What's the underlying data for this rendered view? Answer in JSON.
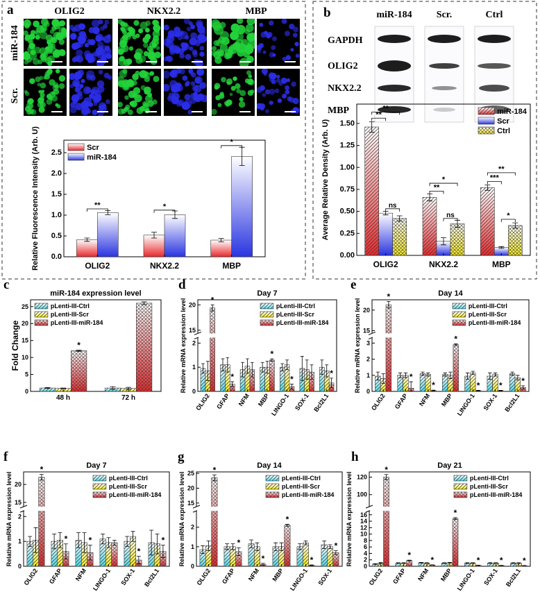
{
  "panel_a": {
    "letter": "a",
    "columns": [
      "OLIG2",
      "NKX2.2",
      "MBP"
    ],
    "rows": [
      "miR-184",
      "Scr."
    ]
  },
  "panel_b": {
    "letter": "b",
    "columns": [
      "miR-184",
      "Scr.",
      "Ctrl"
    ],
    "rows": [
      "GAPDH",
      "OLIG2",
      "NKX2.2",
      "MBP"
    ]
  },
  "colors": {
    "red": "#e8292c",
    "blue": "#2a35e0",
    "cyan": "#4fd8e6",
    "yellow": "#f4e71a",
    "green_stain": "#22d33a",
    "blue_stain": "#2b2de8"
  },
  "chart_data": [
    {
      "id": "a",
      "type": "bar",
      "ylabel": "Relative Fluorescence Intensity (Arb. U)",
      "categories": [
        "OLIG2",
        "NKX2.2",
        "MBP"
      ],
      "ylim": [
        0,
        2.8
      ],
      "yticks": [
        "0.0",
        "0.5",
        "1.0",
        "1.5",
        "2.0",
        "2.5"
      ],
      "legend": "top-left",
      "series": [
        {
          "name": "Scr",
          "color": "red",
          "values": [
            0.41,
            0.52,
            0.4
          ],
          "errors": [
            0.04,
            0.07,
            0.04
          ]
        },
        {
          "name": "miR-184",
          "color": "blue",
          "values": [
            1.06,
            1.01,
            2.41
          ],
          "errors": [
            0.05,
            0.09,
            0.22
          ]
        }
      ],
      "annotations": [
        [
          "**",
          0,
          0,
          1,
          1.15
        ],
        [
          "*",
          1,
          0,
          1,
          1.12
        ],
        [
          "*",
          2,
          0,
          1,
          2.67
        ]
      ]
    },
    {
      "id": "b",
      "type": "bar",
      "ylabel": "Average Relative Density (Arb. U)",
      "categories": [
        "OLIG2",
        "NKX2.2",
        "MBP"
      ],
      "ylim": [
        0,
        1.72
      ],
      "yticks": [
        "0.00",
        "0.25",
        "0.50",
        "0.75",
        "1.00",
        "1.25",
        "1.50"
      ],
      "legend": "top-right",
      "series": [
        {
          "name": "miR-184",
          "color": "red",
          "values": [
            1.46,
            0.66,
            0.77
          ],
          "errors": [
            0.06,
            0.04,
            0.03
          ]
        },
        {
          "name": "Scr",
          "color": "blue",
          "values": [
            0.48,
            0.16,
            0.09
          ],
          "errors": [
            0.02,
            0.04,
            0.01
          ]
        },
        {
          "name": "Ctrl",
          "color": "yellow",
          "values": [
            0.42,
            0.36,
            0.34
          ],
          "errors": [
            0.03,
            0.04,
            0.03
          ]
        }
      ],
      "annotations": [
        [
          "**",
          0,
          0,
          1,
          1.56
        ],
        [
          "**",
          0,
          0,
          2,
          1.63
        ],
        [
          "ns",
          0,
          1,
          2,
          0.53
        ],
        [
          "**",
          1,
          0,
          1,
          0.73
        ],
        [
          "*",
          1,
          0,
          2,
          0.82
        ],
        [
          "ns",
          1,
          1,
          2,
          0.42
        ],
        [
          "***",
          2,
          0,
          1,
          0.84
        ],
        [
          "**",
          2,
          0,
          2,
          0.94
        ],
        [
          "*",
          2,
          1,
          2,
          0.41
        ]
      ]
    },
    {
      "id": "c",
      "type": "bar",
      "title": "miR-184 expression level",
      "ylabel": "Fold Change",
      "categories": [
        "48 h",
        "72 h"
      ],
      "ylim": [
        0,
        27
      ],
      "yticks": [
        "0",
        "5",
        "10",
        "15",
        "20",
        "25"
      ],
      "legend": "top-left",
      "series": [
        {
          "name": "pLenti-III-Ctrl",
          "color": "cyan",
          "values": [
            1.0,
            1.0
          ],
          "errors": [
            0.15,
            0.4
          ]
        },
        {
          "name": "pLenti-III-Scr",
          "color": "yellow",
          "values": [
            0.9,
            0.9
          ],
          "errors": [
            0.1,
            0.3
          ]
        },
        {
          "name": "pLenti-III-miR-184",
          "color": "red",
          "values": [
            12.0,
            26.0
          ],
          "errors": [
            0.2,
            0.4
          ]
        }
      ],
      "stars": [
        [
          0,
          2
        ]
      ]
    },
    {
      "id": "d",
      "type": "bar",
      "title": "Day 7",
      "ylabel": "Relative mRNA expression level",
      "categories": [
        "OLIG2",
        "GFAP",
        "NFM",
        "MBP",
        "LINGO-1",
        "SOX-1",
        "Bcl2L1"
      ],
      "broken_axis": {
        "low": [
          0,
          2.2
        ],
        "high": [
          14.5,
          21
        ],
        "low_ticks": [
          "0",
          "1",
          "2"
        ],
        "high_ticks": [
          "15",
          "20"
        ]
      },
      "legend": "top-right",
      "series": [
        {
          "name": "pLenti-III-Ctrl",
          "color": "cyan",
          "values": [
            0.95,
            1.1,
            0.9,
            1.0,
            1.0,
            0.95,
            1.0
          ],
          "errors": [
            0.2,
            0.25,
            0.3,
            0.2,
            0.15,
            0.5,
            0.3
          ]
        },
        {
          "name": "pLenti-III-Scr",
          "color": "yellow",
          "values": [
            0.85,
            1.1,
            1.05,
            1.0,
            1.1,
            0.9,
            0.85
          ],
          "errors": [
            0.4,
            0.3,
            0.3,
            0.25,
            0.2,
            0.4,
            0.25
          ]
        },
        {
          "name": "pLenti-III-miR-184",
          "color": "red",
          "values": [
            19.4,
            0.3,
            0.9,
            1.3,
            0.2,
            0.8,
            0.35
          ],
          "errors": [
            0.6,
            0.1,
            0.3,
            0.05,
            0.1,
            0.3,
            0.2
          ]
        }
      ],
      "stars": [
        [
          0,
          2
        ],
        [
          1,
          2
        ],
        [
          3,
          2
        ],
        [
          4,
          2
        ],
        [
          6,
          2
        ]
      ]
    },
    {
      "id": "e",
      "type": "bar",
      "title": "Day 14",
      "ylabel": "Relative mRNA expression level",
      "categories": [
        "OLIG2",
        "GFAP",
        "NFM",
        "MBP",
        "LINGO-1",
        "SOX-1",
        "Bcl2L1"
      ],
      "broken_axis": {
        "low": [
          0,
          3.3
        ],
        "high": [
          14.5,
          22.5
        ],
        "low_ticks": [
          "0",
          "1",
          "2",
          "3"
        ],
        "high_ticks": [
          "15",
          "20"
        ]
      },
      "legend": "top-right",
      "series": [
        {
          "name": "pLenti-III-Ctrl",
          "color": "cyan",
          "values": [
            0.95,
            1.0,
            1.1,
            1.05,
            0.95,
            0.95,
            1.1
          ],
          "errors": [
            0.25,
            0.15,
            0.1,
            0.1,
            0.2,
            0.2,
            0.1
          ]
        },
        {
          "name": "pLenti-III-Scr",
          "color": "yellow",
          "values": [
            0.8,
            1.0,
            1.05,
            1.0,
            1.15,
            1.05,
            0.85
          ],
          "errors": [
            0.3,
            0.15,
            0.1,
            0.2,
            0.1,
            0.1,
            0.15
          ]
        },
        {
          "name": "pLenti-III-miR-184",
          "color": "red",
          "values": [
            21.3,
            0.2,
            0.05,
            2.9,
            0.05,
            0.05,
            0.25
          ],
          "errors": [
            0.8,
            0.4,
            0.03,
            0.05,
            0.02,
            0.02,
            0.1
          ]
        }
      ],
      "stars": [
        [
          0,
          2
        ],
        [
          1,
          2
        ],
        [
          2,
          2
        ],
        [
          3,
          2
        ],
        [
          4,
          2
        ],
        [
          5,
          2
        ],
        [
          6,
          2
        ]
      ]
    },
    {
      "id": "f",
      "type": "bar",
      "title": "Day 7",
      "ylabel": "Relative mRNA expression level",
      "categories": [
        "OLIG2",
        "GFAP",
        "NFM",
        "LINGO-1",
        "SOX-1",
        "Bcl2L1"
      ],
      "broken_axis": {
        "low": [
          0,
          2.2
        ],
        "high": [
          14,
          23.5
        ],
        "low_ticks": [
          "0",
          "1",
          "2"
        ],
        "high_ticks": [
          "15",
          "20"
        ]
      },
      "legend": "top-right",
      "series": [
        {
          "name": "pLenti-III-Ctrl",
          "color": "cyan",
          "values": [
            1.0,
            1.0,
            1.05,
            1.1,
            1.0,
            0.95
          ],
          "errors": [
            0.2,
            0.3,
            0.3,
            0.2,
            0.2,
            0.5
          ]
        },
        {
          "name": "pLenti-III-Scr",
          "color": "yellow",
          "values": [
            1.05,
            1.05,
            0.95,
            0.95,
            1.2,
            0.9
          ],
          "errors": [
            0.5,
            0.3,
            0.4,
            0.2,
            0.2,
            0.4
          ]
        },
        {
          "name": "pLenti-III-miR-184",
          "color": "red",
          "values": [
            22.0,
            0.6,
            0.55,
            0.95,
            0.25,
            0.6
          ],
          "errors": [
            0.8,
            0.3,
            0.3,
            0.1,
            0.15,
            0.25
          ]
        }
      ],
      "stars": [
        [
          0,
          2
        ],
        [
          1,
          2
        ],
        [
          2,
          2
        ],
        [
          4,
          2
        ],
        [
          5,
          2
        ]
      ]
    },
    {
      "id": "g",
      "type": "bar",
      "title": "Day 14",
      "ylabel": "Relative mRNA expression level",
      "categories": [
        "OLIG2",
        "GFAP",
        "NFM",
        "MBP",
        "LINGO-1",
        "SOX-1"
      ],
      "broken_axis": {
        "low": [
          0,
          2.8
        ],
        "high": [
          14,
          25.5
        ],
        "low_ticks": [
          "0",
          "1",
          "2"
        ],
        "high_ticks": [
          "15",
          "20",
          "25"
        ]
      },
      "legend": "top-right",
      "series": [
        {
          "name": "pLenti-III-Ctrl",
          "color": "cyan",
          "values": [
            0.85,
            1.0,
            1.15,
            1.0,
            1.0,
            1.1
          ],
          "errors": [
            0.2,
            0.15,
            0.2,
            0.2,
            0.15,
            0.2
          ]
        },
        {
          "name": "pLenti-III-Scr",
          "color": "yellow",
          "values": [
            1.05,
            1.0,
            1.0,
            1.0,
            1.2,
            1.0
          ],
          "errors": [
            0.25,
            0.15,
            0.2,
            0.2,
            0.1,
            0.1
          ]
        },
        {
          "name": "pLenti-III-miR-184",
          "color": "red",
          "values": [
            23.5,
            0.75,
            0.1,
            2.1,
            0.05,
            0.7
          ],
          "errors": [
            1.0,
            0.2,
            0.05,
            0.05,
            0.02,
            0.1
          ]
        }
      ],
      "stars": [
        [
          0,
          2
        ],
        [
          1,
          2
        ],
        [
          2,
          2
        ],
        [
          3,
          2
        ],
        [
          4,
          2
        ],
        [
          5,
          2
        ]
      ]
    },
    {
      "id": "h",
      "type": "bar",
      "title": "Day 21",
      "ylabel": "Relative mRNA expression level",
      "categories": [
        "OLIG2",
        "GFAP",
        "NFM",
        "MBP",
        "LINGO-1",
        "SOX-1",
        "Bcl2L1"
      ],
      "broken_axis": {
        "low": [
          0,
          17
        ],
        "high": [
          87,
          126
        ],
        "low_ticks": [
          "0",
          "2",
          "4",
          "6",
          "8",
          "10",
          "12",
          "14",
          "16"
        ],
        "high_ticks": [
          "100",
          "120"
        ]
      },
      "legend": "top-right",
      "series": [
        {
          "name": "pLenti-III-Ctrl",
          "color": "cyan",
          "values": [
            0.7,
            1.0,
            1.1,
            1.0,
            1.0,
            1.0,
            1.0
          ],
          "errors": [
            0.1,
            0.1,
            0.1,
            0.1,
            0.1,
            0.1,
            0.1
          ]
        },
        {
          "name": "pLenti-III-Scr",
          "color": "yellow",
          "values": [
            1.0,
            1.0,
            1.0,
            1.1,
            1.0,
            1.0,
            1.0
          ],
          "errors": [
            0.15,
            0.1,
            0.1,
            0.1,
            0.1,
            0.1,
            0.1
          ]
        },
        {
          "name": "pLenti-III-miR-184",
          "color": "red",
          "values": [
            120.0,
            1.8,
            0.4,
            14.8,
            0.3,
            0.25,
            0.2
          ],
          "errors": [
            3.0,
            0.1,
            0.05,
            0.3,
            0.05,
            0.05,
            0.05
          ]
        }
      ],
      "stars": [
        [
          0,
          2
        ],
        [
          1,
          2
        ],
        [
          2,
          2
        ],
        [
          3,
          2
        ],
        [
          4,
          2
        ],
        [
          5,
          2
        ],
        [
          6,
          2
        ]
      ]
    }
  ]
}
